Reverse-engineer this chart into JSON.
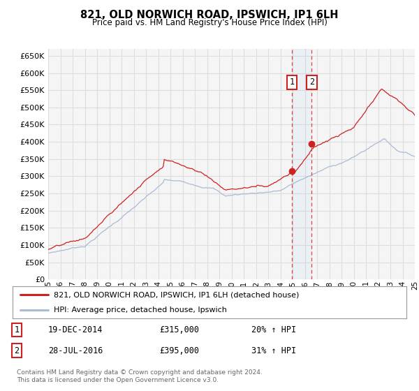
{
  "title": "821, OLD NORWICH ROAD, IPSWICH, IP1 6LH",
  "subtitle": "Price paid vs. HM Land Registry's House Price Index (HPI)",
  "ylim": [
    0,
    670000
  ],
  "yticks": [
    0,
    50000,
    100000,
    150000,
    200000,
    250000,
    300000,
    350000,
    400000,
    450000,
    500000,
    550000,
    600000,
    650000
  ],
  "background_color": "#ffffff",
  "plot_bg_color": "#f5f5f5",
  "grid_color": "#dddddd",
  "hpi_color": "#aabbd4",
  "price_color": "#cc2222",
  "transaction1": {
    "date": "19-DEC-2014",
    "price": 315000,
    "label": "1",
    "pct": "20%",
    "year": 2014.96
  },
  "transaction2": {
    "date": "28-JUL-2016",
    "price": 395000,
    "label": "2",
    "pct": "31%",
    "year": 2016.57
  },
  "legend_label1": "821, OLD NORWICH ROAD, IPSWICH, IP1 6LH (detached house)",
  "legend_label2": "HPI: Average price, detached house, Ipswich",
  "footnote": "Contains HM Land Registry data © Crown copyright and database right 2024.\nThis data is licensed under the Open Government Licence v3.0.",
  "xstart": 1995,
  "xend": 2025
}
